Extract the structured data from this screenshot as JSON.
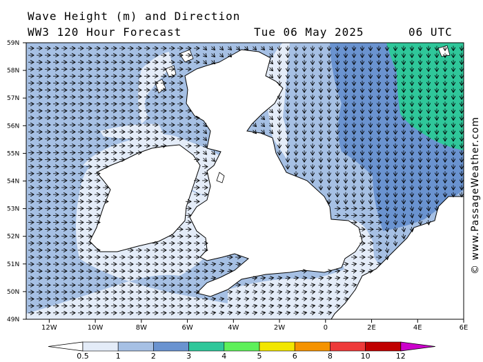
{
  "header": {
    "line1": "Wave Height (m) and Direction",
    "line2": "WW3 120 Hour Forecast",
    "date": "Tue 06 May 2025",
    "time": "06 UTC"
  },
  "credit": "© www.PassageWeather.com",
  "map": {
    "lat_labels": [
      "59N",
      "58N",
      "57N",
      "56N",
      "55N",
      "54N",
      "53N",
      "52N",
      "51N",
      "50N",
      "49N"
    ],
    "lon_labels": [
      "12W",
      "10W",
      "8W",
      "6W",
      "4W",
      "2W",
      "0",
      "2E",
      "4E",
      "6E"
    ]
  },
  "colorbar": {
    "ticks": [
      "0.5",
      "1",
      "2",
      "3",
      "4",
      "5",
      "6",
      "8",
      "10",
      "12"
    ],
    "colors": [
      "#e4ecf8",
      "#a6c0e4",
      "#6a93d0",
      "#2fc79a",
      "#5ef05a",
      "#f2e600",
      "#f59300",
      "#ee3a3a",
      "#c00000",
      "#cc00cc"
    ]
  },
  "chart_data": {
    "type": "heatmap",
    "variable": "Wave Height (m) and Direction",
    "model": "WW3 120 Hour Forecast",
    "valid": "Tue 06 May 2025 06 UTC",
    "lat_range": [
      49,
      59
    ],
    "lon_range": [
      -13,
      6
    ],
    "levels_m": [
      0.5,
      1,
      2,
      3,
      4,
      5,
      6,
      8,
      10,
      12
    ]
  }
}
